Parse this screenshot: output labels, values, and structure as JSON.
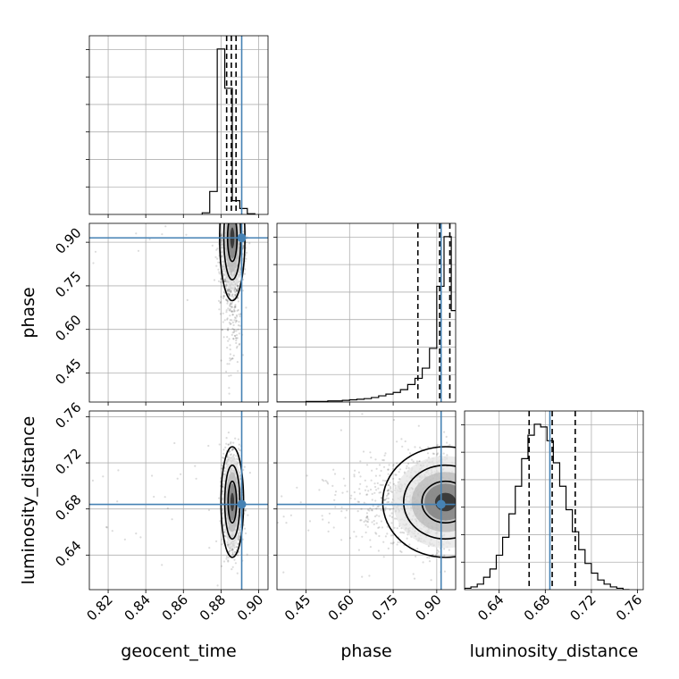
{
  "chart_data": {
    "type": "corner",
    "title": "",
    "parameters": [
      "geocent_time",
      "phase",
      "luminosity_distance"
    ],
    "truths": {
      "geocent_time": 0.891,
      "phase": 0.915,
      "luminosity_distance": 0.684
    },
    "quantiles": {
      "geocent_time": [
        0.883,
        0.8855,
        0.888
      ],
      "phase": [
        0.835,
        0.91,
        0.945
      ],
      "luminosity_distance": [
        0.666,
        0.686,
        0.706
      ]
    },
    "ranges": {
      "geocent_time": [
        0.81,
        0.905
      ],
      "phase": [
        0.35,
        0.965
      ],
      "luminosity_distance": [
        0.61,
        0.765
      ]
    },
    "ticks": {
      "geocent_time": [
        "0.82",
        "0.84",
        "0.86",
        "0.88",
        "0.90"
      ],
      "phase": [
        "0.45",
        "0.60",
        "0.75",
        "0.90"
      ],
      "luminosity_distance": [
        "0.64",
        "0.68",
        "0.72",
        "0.76"
      ]
    },
    "marginal_histograms": {
      "geocent_time": {
        "bin_edges": [
          0.87,
          0.874,
          0.878,
          0.882,
          0.886,
          0.89,
          0.894,
          0.898
        ],
        "counts": [
          5,
          70,
          505,
          385,
          42,
          18,
          2
        ]
      },
      "phase": {
        "bin_edges": [
          0.35,
          0.375,
          0.4,
          0.425,
          0.45,
          0.475,
          0.5,
          0.525,
          0.55,
          0.575,
          0.6,
          0.625,
          0.65,
          0.675,
          0.7,
          0.725,
          0.75,
          0.775,
          0.8,
          0.825,
          0.85,
          0.875,
          0.9,
          0.925,
          0.95,
          0.975
        ],
        "counts": [
          0,
          0,
          0,
          0,
          1,
          1,
          1,
          2,
          2,
          3,
          4,
          5,
          6,
          8,
          11,
          14,
          17,
          22,
          31,
          42,
          60,
          95,
          205,
          293,
          162
        ]
      },
      "luminosity_distance": {
        "bin_edges": [
          0.61,
          0.6155,
          0.621,
          0.6265,
          0.632,
          0.6375,
          0.643,
          0.6485,
          0.654,
          0.6595,
          0.665,
          0.6705,
          0.676,
          0.6815,
          0.687,
          0.6925,
          0.698,
          0.7035,
          0.709,
          0.7145,
          0.72,
          0.7255,
          0.731,
          0.7365,
          0.742,
          0.7475,
          0.753
        ],
        "counts": [
          1,
          2,
          4,
          9,
          15,
          25,
          38,
          55,
          75,
          95,
          112,
          120,
          118,
          108,
          92,
          75,
          58,
          42,
          29,
          19,
          12,
          7,
          4,
          2,
          1,
          0
        ]
      }
    },
    "samples_2d": {
      "geocent_time_phase": {
        "center": [
          0.886,
          0.915
        ],
        "spread": [
          0.0028,
          0.09
        ]
      },
      "geocent_time_luminosity_distance": {
        "center": [
          0.886,
          0.686
        ],
        "spread": [
          0.0025,
          0.02
        ]
      },
      "phase_luminosity_distance": {
        "center": [
          0.93,
          0.686
        ],
        "spread": [
          0.09,
          0.02
        ]
      }
    }
  }
}
